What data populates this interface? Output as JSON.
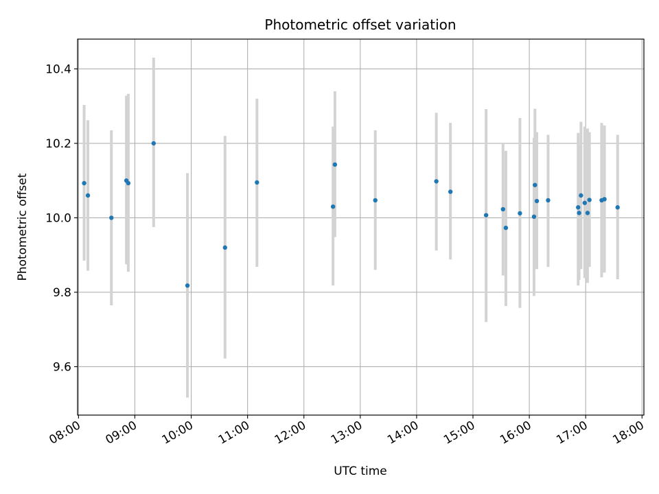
{
  "chart_data": {
    "type": "scatter",
    "title": "Photometric offset variation",
    "xlabel": "UTC time",
    "ylabel": "Photometric offset",
    "x_ticks": [
      "08:00",
      "09:00",
      "10:00",
      "11:00",
      "12:00",
      "13:00",
      "14:00",
      "15:00",
      "16:00",
      "17:00",
      "18:00"
    ],
    "y_ticks": [
      "9.6",
      "9.8",
      "10.0",
      "10.2",
      "10.4"
    ],
    "xlim": [
      "07:59",
      "18:02"
    ],
    "ylim": [
      9.47,
      10.48
    ],
    "grid": true,
    "colors": {
      "point": "#1f77b4",
      "errorbar": "#d3d3d3",
      "grid": "#b0b0b0"
    },
    "points": [
      {
        "x": "08:06",
        "y": 10.093,
        "ylow": 9.885,
        "yhigh": 10.303
      },
      {
        "x": "08:10",
        "y": 10.06,
        "ylow": 9.858,
        "yhigh": 10.262
      },
      {
        "x": "08:35",
        "y": 10.0,
        "ylow": 9.765,
        "yhigh": 10.235
      },
      {
        "x": "08:51",
        "y": 10.1,
        "ylow": 9.875,
        "yhigh": 10.328
      },
      {
        "x": "08:53",
        "y": 10.093,
        "ylow": 9.855,
        "yhigh": 10.333
      },
      {
        "x": "09:20",
        "y": 10.2,
        "ylow": 9.975,
        "yhigh": 10.43
      },
      {
        "x": "09:56",
        "y": 9.818,
        "ylow": 9.517,
        "yhigh": 10.12
      },
      {
        "x": "10:36",
        "y": 9.92,
        "ylow": 9.622,
        "yhigh": 10.22
      },
      {
        "x": "11:10",
        "y": 10.095,
        "ylow": 9.868,
        "yhigh": 10.32
      },
      {
        "x": "12:31",
        "y": 10.03,
        "ylow": 9.818,
        "yhigh": 10.245
      },
      {
        "x": "12:33",
        "y": 10.143,
        "ylow": 9.948,
        "yhigh": 10.34
      },
      {
        "x": "13:16",
        "y": 10.047,
        "ylow": 9.86,
        "yhigh": 10.235
      },
      {
        "x": "14:21",
        "y": 10.098,
        "ylow": 9.912,
        "yhigh": 10.282
      },
      {
        "x": "14:36",
        "y": 10.07,
        "ylow": 9.888,
        "yhigh": 10.255
      },
      {
        "x": "15:14",
        "y": 10.007,
        "ylow": 9.72,
        "yhigh": 10.292
      },
      {
        "x": "15:32",
        "y": 10.023,
        "ylow": 9.845,
        "yhigh": 10.198
      },
      {
        "x": "15:35",
        "y": 9.973,
        "ylow": 9.763,
        "yhigh": 10.18
      },
      {
        "x": "15:50",
        "y": 10.012,
        "ylow": 9.758,
        "yhigh": 10.268
      },
      {
        "x": "16:05",
        "y": 10.003,
        "ylow": 9.79,
        "yhigh": 10.215
      },
      {
        "x": "16:06",
        "y": 10.088,
        "ylow": 9.883,
        "yhigh": 10.293
      },
      {
        "x": "16:08",
        "y": 10.045,
        "ylow": 9.862,
        "yhigh": 10.23
      },
      {
        "x": "16:20",
        "y": 10.047,
        "ylow": 9.868,
        "yhigh": 10.223
      },
      {
        "x": "16:52",
        "y": 10.028,
        "ylow": 9.818,
        "yhigh": 10.228
      },
      {
        "x": "16:53",
        "y": 10.013,
        "ylow": 9.833,
        "yhigh": 10.195
      },
      {
        "x": "16:55",
        "y": 10.06,
        "ylow": 9.862,
        "yhigh": 10.258
      },
      {
        "x": "16:59",
        "y": 10.04,
        "ylow": 9.838,
        "yhigh": 10.245
      },
      {
        "x": "17:02",
        "y": 10.013,
        "ylow": 9.825,
        "yhigh": 10.24
      },
      {
        "x": "17:04",
        "y": 10.048,
        "ylow": 9.868,
        "yhigh": 10.23
      },
      {
        "x": "17:17",
        "y": 10.047,
        "ylow": 9.84,
        "yhigh": 10.255
      },
      {
        "x": "17:20",
        "y": 10.05,
        "ylow": 9.853,
        "yhigh": 10.248
      },
      {
        "x": "17:34",
        "y": 10.028,
        "ylow": 9.835,
        "yhigh": 10.223
      }
    ]
  }
}
